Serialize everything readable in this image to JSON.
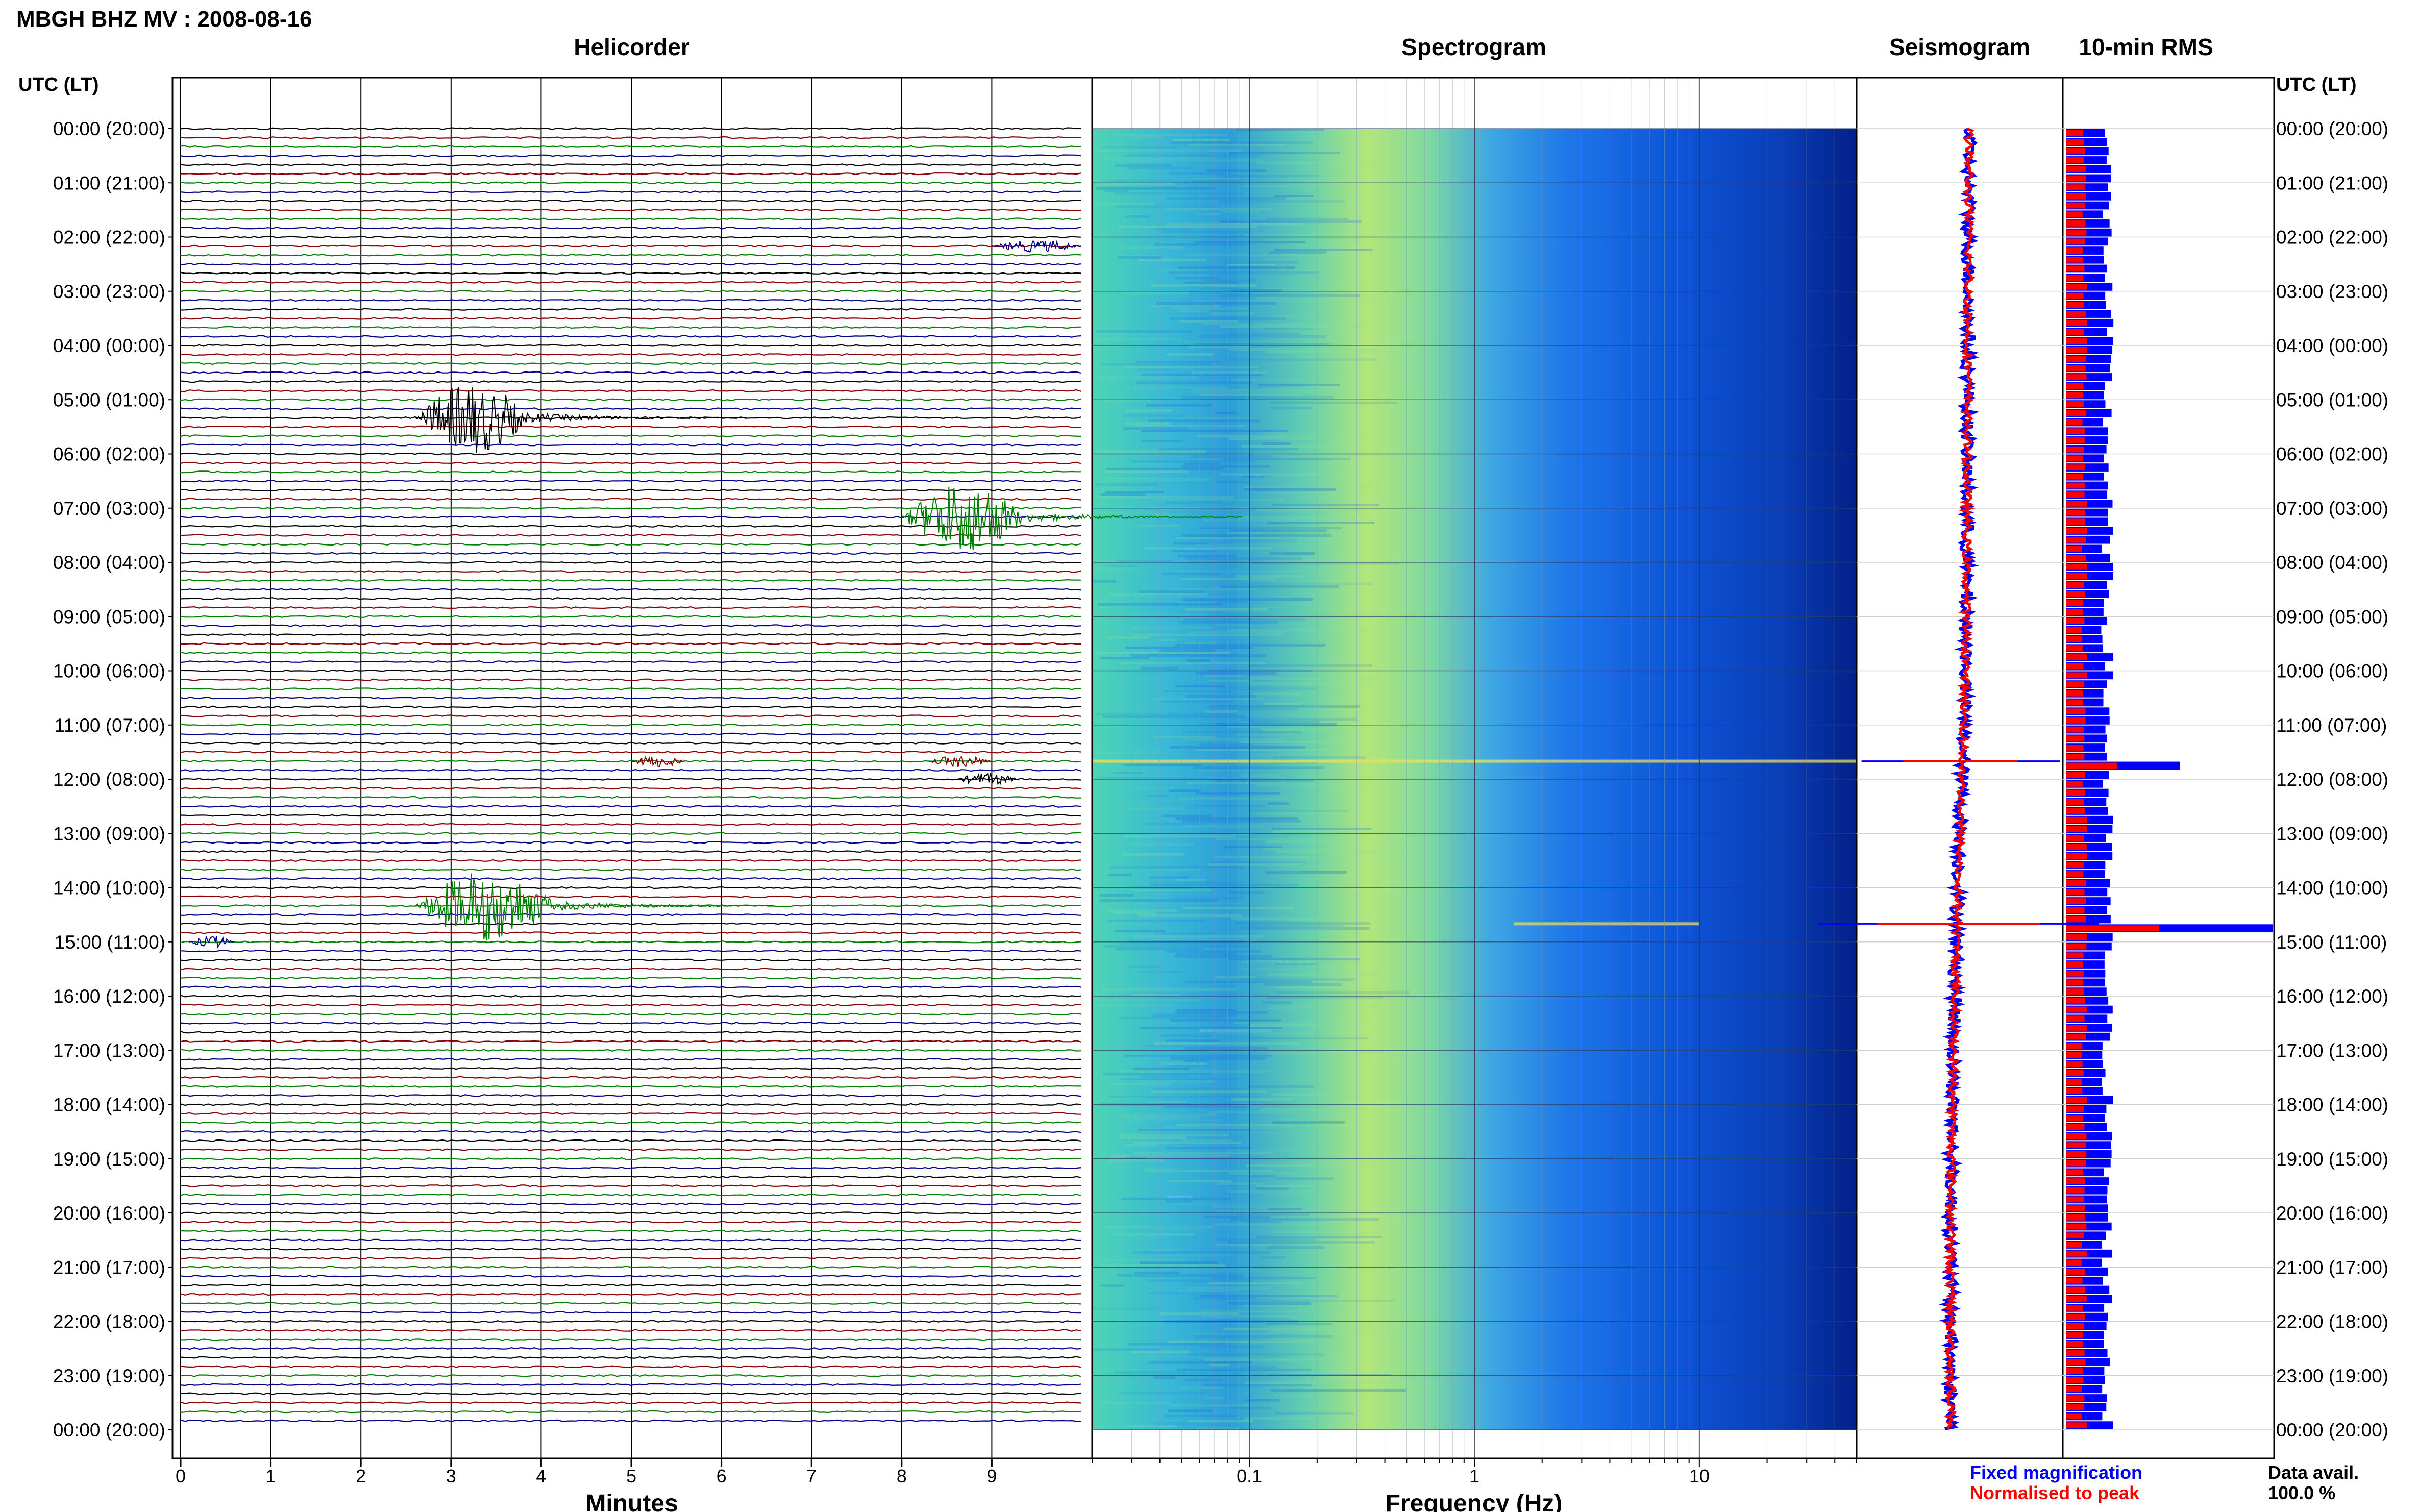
{
  "title": "MBGH BHZ MV : 2008-08-16",
  "panels": {
    "helicorder": "Helicorder",
    "spectrogram": "Spectrogram",
    "seismogram": "Seismogram",
    "rms": "10-min RMS"
  },
  "axis_header_left": "UTC (LT)",
  "axis_header_right": "UTC (LT)",
  "time_labels": [
    "00:00 (20:00)",
    "01:00 (21:00)",
    "02:00 (22:00)",
    "03:00 (23:00)",
    "04:00 (00:00)",
    "05:00 (01:00)",
    "06:00 (02:00)",
    "07:00 (03:00)",
    "08:00 (04:00)",
    "09:00 (05:00)",
    "10:00 (06:00)",
    "11:00 (07:00)",
    "12:00 (08:00)",
    "13:00 (09:00)",
    "14:00 (10:00)",
    "15:00 (11:00)",
    "16:00 (12:00)",
    "17:00 (13:00)",
    "18:00 (14:00)",
    "19:00 (15:00)",
    "20:00 (16:00)",
    "21:00 (17:00)",
    "22:00 (18:00)",
    "23:00 (19:00)",
    "00:00 (20:00)"
  ],
  "helicorder_xlabel": "Minutes",
  "helicorder_ticks": [
    "0",
    "1",
    "2",
    "3",
    "4",
    "5",
    "6",
    "7",
    "8",
    "9"
  ],
  "spectrogram_xlabel": "Frequency (Hz)",
  "spectrogram_ticks": [
    "0.1",
    "1",
    "10"
  ],
  "legend": {
    "fixed": "Fixed magnification",
    "normalised": "Normalised to peak",
    "fixed_color": "#0000ff",
    "normalised_color": "#ff0000"
  },
  "data_avail_label": "Data avail.",
  "data_avail_value": "100.0 %",
  "colors": {
    "trace_cycle": [
      "#000000",
      "#8b0000",
      "#008000",
      "#00008b"
    ],
    "fixed": "#0000ff",
    "normalised": "#ff0000"
  },
  "chart_data": [
    {
      "type": "line",
      "title": "Helicorder",
      "xlabel": "Minutes",
      "xlim": [
        0,
        10
      ],
      "ylabel": "UTC (LT)",
      "lines_per_hour": 6,
      "hours": 24,
      "events": [
        {
          "time_utc": "11:40",
          "minutes": [
            5.0,
            5.6
          ],
          "color": "#8b0000"
        },
        {
          "time_utc": "11:40",
          "minutes": [
            8.3,
            9.0
          ],
          "color": "#8b0000"
        },
        {
          "time_utc": "14:20",
          "minutes": [
            2.6,
            4.2
          ],
          "color": "#008000"
        },
        {
          "time_utc": "15:00",
          "minutes": [
            0.1,
            0.6
          ],
          "color": "#00008b"
        },
        {
          "time_utc": "12:00",
          "minutes": [
            8.6,
            9.3
          ],
          "color": "#000000"
        },
        {
          "time_utc": "02:10",
          "minutes": [
            9.0,
            10.0
          ],
          "color": "#00008b"
        },
        {
          "time_utc": "07:10",
          "minutes": [
            8.0,
            9.4
          ],
          "color": "#008000"
        },
        {
          "time_utc": "05:20",
          "minutes": [
            2.6,
            3.9
          ],
          "color": "#000000"
        }
      ]
    },
    {
      "type": "heatmap",
      "title": "Spectrogram",
      "xlabel": "Frequency (Hz)",
      "x_scale": "log",
      "xlim": [
        0.02,
        50
      ],
      "ylim_hours": [
        0,
        24
      ],
      "peak_energy_band_hz": [
        0.2,
        0.6
      ],
      "notable_lines": [
        {
          "time_utc": "11:40",
          "note": "broadband"
        },
        {
          "time_utc": "14:40",
          "freq_hz": [
            1.5,
            10
          ]
        }
      ]
    },
    {
      "type": "line",
      "title": "Seismogram",
      "series": [
        {
          "name": "Fixed magnification",
          "color": "#0000ff"
        },
        {
          "name": "Normalised to peak",
          "color": "#ff0000"
        }
      ]
    },
    {
      "type": "bar",
      "title": "10-min RMS",
      "bars_per_hour": 6,
      "hours": 24,
      "peaks": [
        {
          "time_utc": "11:40",
          "relative": 0.55
        },
        {
          "time_utc": "14:40",
          "relative": 1.0
        }
      ],
      "series": [
        {
          "name": "Fixed magnification",
          "color": "#0000ff"
        },
        {
          "name": "Normalised to peak",
          "color": "#ff0000"
        }
      ]
    }
  ]
}
